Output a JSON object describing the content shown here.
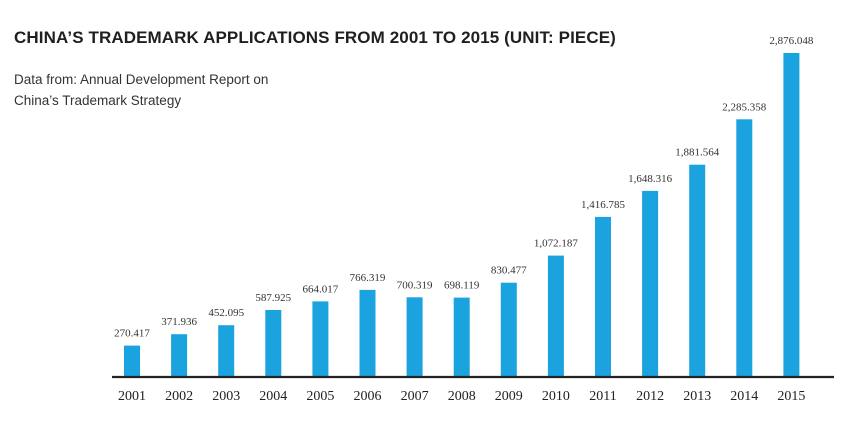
{
  "chart_data": {
    "type": "bar",
    "title": "CHINA’S TRADEMARK APPLICATIONS FROM 2001 TO 2015 (UNIT: PIECE)",
    "subtitle": "Data from: Annual Development Report on China’s Trademark Strategy",
    "xlabel": "",
    "ylabel": "",
    "categories": [
      "2001",
      "2002",
      "2003",
      "2004",
      "2005",
      "2006",
      "2007",
      "2008",
      "2009",
      "2010",
      "2011",
      "2012",
      "2013",
      "2014",
      "2015"
    ],
    "values": [
      270417,
      371936,
      452095,
      587925,
      664017,
      766319,
      700319,
      698119,
      830477,
      1072187,
      1416785,
      1648316,
      1881564,
      2285358,
      2876048
    ],
    "value_labels": [
      "270.417",
      "371.936",
      "452.095",
      "587.925",
      "664.017",
      "766.319",
      "700.319",
      "698.119",
      "830.477",
      "1,072.187",
      "1,416.785",
      "1,648.316",
      "1,881.564",
      "2,285.358",
      "2,876.048"
    ],
    "ylim": [
      0,
      2876048
    ],
    "grid": false,
    "legend": "none",
    "bar_color": "#1ba3e0",
    "axis_color": "#222222"
  }
}
